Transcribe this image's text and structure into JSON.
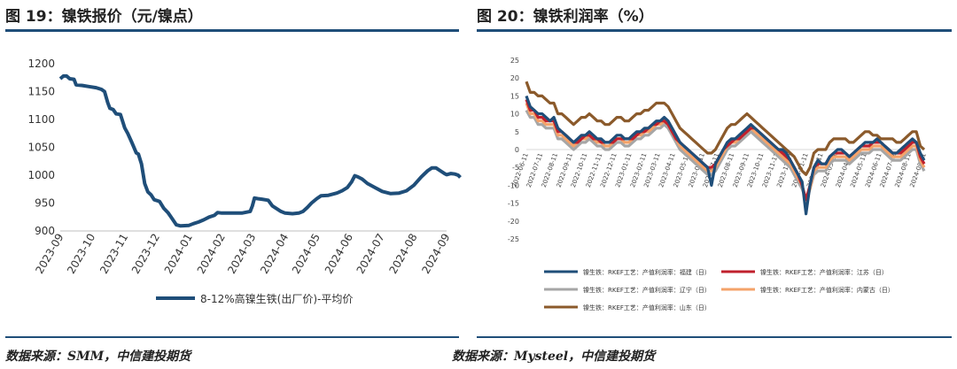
{
  "figures": [
    {
      "title": "图 19：镍铁报价（元/镍点）",
      "source": "数据来源：SMM，中信建投期货",
      "chart_data": {
        "type": "line",
        "title": "",
        "xlabel": "",
        "ylabel": "",
        "x_ticks": [
          "2023-09",
          "2023-10",
          "2023-11",
          "2023-12",
          "2024-01",
          "2024-02",
          "2024-03",
          "2024-04",
          "2024-05",
          "2024-06",
          "2024-07",
          "2024-08",
          "2024-09"
        ],
        "y_ticks": [
          900,
          950,
          1000,
          1050,
          1100,
          1150,
          1200
        ],
        "ylim": [
          900,
          1200
        ],
        "xlim": [
          "2023-09-01",
          "2024-09-01"
        ],
        "grid": false,
        "legend_position": "bottom",
        "series": [
          {
            "name": "8-12%高镍生铁(出厂价)-平均价",
            "color": "#1f4e79",
            "points": [
              [
                "2023-09-01",
                1173
              ],
              [
                "2023-09-04",
                1178
              ],
              [
                "2023-09-07",
                1178
              ],
              [
                "2023-09-10",
                1173
              ],
              [
                "2023-09-14",
                1172
              ],
              [
                "2023-09-16",
                1162
              ],
              [
                "2023-09-22",
                1161
              ],
              [
                "2023-09-28",
                1159
              ],
              [
                "2023-10-05",
                1157
              ],
              [
                "2023-10-10",
                1154
              ],
              [
                "2023-10-13",
                1150
              ],
              [
                "2023-10-16",
                1130
              ],
              [
                "2023-10-18",
                1120
              ],
              [
                "2023-10-21",
                1118
              ],
              [
                "2023-10-24",
                1110
              ],
              [
                "2023-10-28",
                1109
              ],
              [
                "2023-11-01",
                1085
              ],
              [
                "2023-11-04",
                1075
              ],
              [
                "2023-11-08",
                1058
              ],
              [
                "2023-11-12",
                1040
              ],
              [
                "2023-11-14",
                1038
              ],
              [
                "2023-11-17",
                1020
              ],
              [
                "2023-11-20",
                985
              ],
              [
                "2023-11-23",
                970
              ],
              [
                "2023-11-26",
                965
              ],
              [
                "2023-11-29",
                956
              ],
              [
                "2023-12-04",
                953
              ],
              [
                "2023-12-08",
                941
              ],
              [
                "2023-12-12",
                933
              ],
              [
                "2023-12-16",
                922
              ],
              [
                "2023-12-20",
                911
              ],
              [
                "2023-12-24",
                909
              ],
              [
                "2024-01-01",
                910
              ],
              [
                "2024-01-05",
                913
              ],
              [
                "2024-01-10",
                916
              ],
              [
                "2024-01-15",
                920
              ],
              [
                "2024-01-20",
                925
              ],
              [
                "2024-01-25",
                928
              ],
              [
                "2024-01-28",
                933
              ],
              [
                "2024-02-01",
                932
              ],
              [
                "2024-02-10",
                932
              ],
              [
                "2024-02-20",
                932
              ],
              [
                "2024-02-28",
                935
              ],
              [
                "2024-03-01",
                945
              ],
              [
                "2024-03-03",
                959
              ],
              [
                "2024-03-06",
                958
              ],
              [
                "2024-03-10",
                957
              ],
              [
                "2024-03-16",
                955
              ],
              [
                "2024-03-20",
                945
              ],
              [
                "2024-03-24",
                940
              ],
              [
                "2024-03-28",
                935
              ],
              [
                "2024-04-01",
                932
              ],
              [
                "2024-04-08",
                931
              ],
              [
                "2024-04-14",
                932
              ],
              [
                "2024-04-18",
                935
              ],
              [
                "2024-04-22",
                942
              ],
              [
                "2024-04-26",
                950
              ],
              [
                "2024-05-01",
                958
              ],
              [
                "2024-05-05",
                963
              ],
              [
                "2024-05-12",
                964
              ],
              [
                "2024-05-20",
                968
              ],
              [
                "2024-05-25",
                972
              ],
              [
                "2024-05-30",
                978
              ],
              [
                "2024-06-03",
                988
              ],
              [
                "2024-06-06",
                999
              ],
              [
                "2024-06-09",
                997
              ],
              [
                "2024-06-13",
                993
              ],
              [
                "2024-06-18",
                985
              ],
              [
                "2024-06-25",
                978
              ],
              [
                "2024-07-02",
                971
              ],
              [
                "2024-07-10",
                967
              ],
              [
                "2024-07-18",
                968
              ],
              [
                "2024-07-25",
                972
              ],
              [
                "2024-08-01",
                982
              ],
              [
                "2024-08-08",
                997
              ],
              [
                "2024-08-14",
                1008
              ],
              [
                "2024-08-18",
                1013
              ],
              [
                "2024-08-22",
                1013
              ],
              [
                "2024-08-26",
                1008
              ],
              [
                "2024-08-30",
                1003
              ],
              [
                "2024-09-01",
                1001
              ],
              [
                "2024-09-05",
                1003
              ],
              [
                "2024-09-09",
                1002
              ],
              [
                "2024-09-12",
                1000
              ],
              [
                "2024-09-14",
                996
              ]
            ]
          }
        ]
      }
    },
    {
      "title": "图 20：镍铁利润率（%）",
      "source": "数据来源：Mysteel，中信建投期货",
      "chart_data": {
        "type": "line",
        "title": "",
        "xlabel": "",
        "ylabel": "",
        "y_ticks": [
          -25,
          -20,
          -15,
          -10,
          -5,
          0,
          5,
          10,
          15,
          20,
          25
        ],
        "ylim": [
          -25,
          25
        ],
        "x_date_range": [
          "2022-06-11",
          "2024-09-11"
        ],
        "x_ticks": [
          "2022-06-11",
          "2022-07-11",
          "2022-08-11",
          "2022-09-11",
          "2022-10-11",
          "2022-11-11",
          "2022-12-11",
          "2023-01-11",
          "2023-02-11",
          "2023-03-11",
          "2023-04-11",
          "2023-05-11",
          "2023-06-11",
          "2023-07-11",
          "2023-08-11",
          "2023-09-11",
          "2023-10-11",
          "2023-11-11",
          "2023-12-11",
          "2024-01-11",
          "2024-02-11",
          "2024-03-11",
          "2024-04-11",
          "2024-05-11",
          "2024-06-11",
          "2024-07-11",
          "2024-08-11",
          "2024-09-11"
        ],
        "grid": false,
        "legend_position": "bottom",
        "series": [
          {
            "name": "镍生铁：RKEF工艺：产值利润率：福建（日）",
            "color": "#1f4e79",
            "values": [
              15,
              12,
              11,
              10,
              10,
              9,
              8,
              9,
              6,
              5,
              4,
              3,
              2,
              3,
              4,
              4,
              5,
              4,
              3,
              3,
              2,
              2,
              3,
              4,
              4,
              3,
              3,
              4,
              5,
              5,
              6,
              6,
              7,
              8,
              8,
              9,
              8,
              6,
              4,
              2,
              1,
              0,
              -1,
              -2,
              -3,
              -4,
              -5,
              -10,
              -4,
              -2,
              0,
              2,
              3,
              3,
              4,
              5,
              6,
              7,
              6,
              5,
              4,
              3,
              2,
              1,
              0,
              0,
              -1,
              -3,
              -5,
              -7,
              -9,
              -18,
              -10,
              -5,
              -3,
              -4,
              -4,
              -2,
              -1,
              0,
              0,
              -1,
              -2,
              -1,
              0,
              1,
              2,
              2,
              2,
              3,
              2,
              1,
              0,
              -1,
              -1,
              0,
              1,
              2,
              3,
              2,
              -1,
              -3
            ]
          },
          {
            "name": "镍生铁：RKEF工艺：产值利润率：江苏（日）",
            "color": "#c0202c",
            "values": [
              14,
              11,
              11,
              9,
              9,
              8,
              8,
              8,
              5,
              5,
              4,
              3,
              2,
              2,
              3,
              4,
              4,
              3,
              3,
              2,
              2,
              2,
              2,
              3,
              3,
              3,
              3,
              3,
              4,
              5,
              5,
              6,
              7,
              7,
              8,
              8,
              7,
              5,
              3,
              2,
              1,
              0,
              -1,
              -2,
              -3,
              -4,
              -5,
              -5,
              -4,
              -2,
              0,
              1,
              2,
              3,
              3,
              4,
              5,
              6,
              6,
              5,
              4,
              3,
              2,
              1,
              0,
              -1,
              -2,
              -3,
              -5,
              -7,
              -10,
              -14,
              -10,
              -5,
              -4,
              -4,
              -4,
              -2,
              -1,
              -1,
              -1,
              -1,
              -2,
              -1,
              0,
              1,
              1,
              1,
              2,
              2,
              2,
              1,
              0,
              -1,
              -1,
              -1,
              0,
              1,
              2,
              2,
              -2,
              -4
            ]
          },
          {
            "name": "镍生铁：RKEF工艺：产值利润率：辽宁（日）",
            "color": "#a6a6a6",
            "values": [
              11,
              9,
              9,
              7,
              7,
              6,
              6,
              6,
              3,
              3,
              2,
              1,
              0,
              1,
              2,
              2,
              3,
              2,
              1,
              1,
              0,
              0,
              1,
              2,
              2,
              1,
              1,
              2,
              3,
              3,
              4,
              4,
              5,
              6,
              6,
              7,
              6,
              4,
              2,
              0,
              -1,
              -2,
              -3,
              -4,
              -5,
              -6,
              -7,
              -7,
              -6,
              -4,
              -2,
              0,
              1,
              1,
              2,
              3,
              4,
              5,
              4,
              3,
              2,
              1,
              0,
              -1,
              -2,
              -3,
              -4,
              -5,
              -7,
              -9,
              -11,
              -14,
              -11,
              -7,
              -6,
              -6,
              -6,
              -4,
              -3,
              -3,
              -3,
              -3,
              -4,
              -3,
              -2,
              -1,
              -1,
              -1,
              0,
              0,
              0,
              -1,
              -2,
              -3,
              -3,
              -3,
              -2,
              -1,
              0,
              0,
              -4,
              -6
            ]
          },
          {
            "name": "镍生铁：RKEF工艺：产值利润率：内蒙古（日）",
            "color": "#f4a36a",
            "values": [
              13,
              10,
              10,
              8,
              8,
              7,
              7,
              7,
              4,
              4,
              3,
              2,
              1,
              2,
              3,
              3,
              4,
              3,
              2,
              2,
              1,
              1,
              2,
              3,
              3,
              2,
              2,
              3,
              4,
              4,
              5,
              5,
              6,
              7,
              7,
              8,
              7,
              5,
              3,
              1,
              0,
              -1,
              -2,
              -3,
              -4,
              -5,
              -6,
              -6,
              -5,
              -3,
              -1,
              1,
              2,
              2,
              3,
              4,
              5,
              6,
              5,
              4,
              3,
              2,
              1,
              0,
              -1,
              -2,
              -3,
              -4,
              -6,
              -8,
              -10,
              -15,
              -11,
              -6,
              -5,
              -5,
              -5,
              -3,
              -2,
              -2,
              -2,
              -2,
              -3,
              -2,
              -1,
              0,
              0,
              0,
              1,
              1,
              1,
              0,
              -1,
              -2,
              -2,
              -2,
              -1,
              0,
              1,
              1,
              -3,
              -5
            ]
          },
          {
            "name": "镍生铁：RKEF工艺：产值利润率：山东（日）",
            "color": "#8b5a2b",
            "values": [
              19,
              16,
              16,
              15,
              15,
              14,
              13,
              13,
              10,
              10,
              9,
              8,
              7,
              8,
              9,
              9,
              10,
              9,
              8,
              8,
              7,
              7,
              8,
              9,
              9,
              8,
              8,
              9,
              10,
              10,
              11,
              11,
              12,
              13,
              13,
              13,
              12,
              10,
              8,
              6,
              5,
              4,
              3,
              2,
              1,
              0,
              -1,
              -1,
              0,
              2,
              4,
              6,
              7,
              7,
              8,
              9,
              10,
              9,
              8,
              7,
              6,
              5,
              4,
              3,
              2,
              1,
              0,
              -1,
              -2,
              -4,
              -6,
              -7,
              -5,
              -1,
              0,
              0,
              0,
              2,
              3,
              3,
              3,
              3,
              2,
              2,
              3,
              4,
              5,
              5,
              4,
              4,
              3,
              3,
              3,
              3,
              2,
              2,
              3,
              4,
              5,
              5,
              1,
              0
            ]
          }
        ]
      }
    }
  ]
}
